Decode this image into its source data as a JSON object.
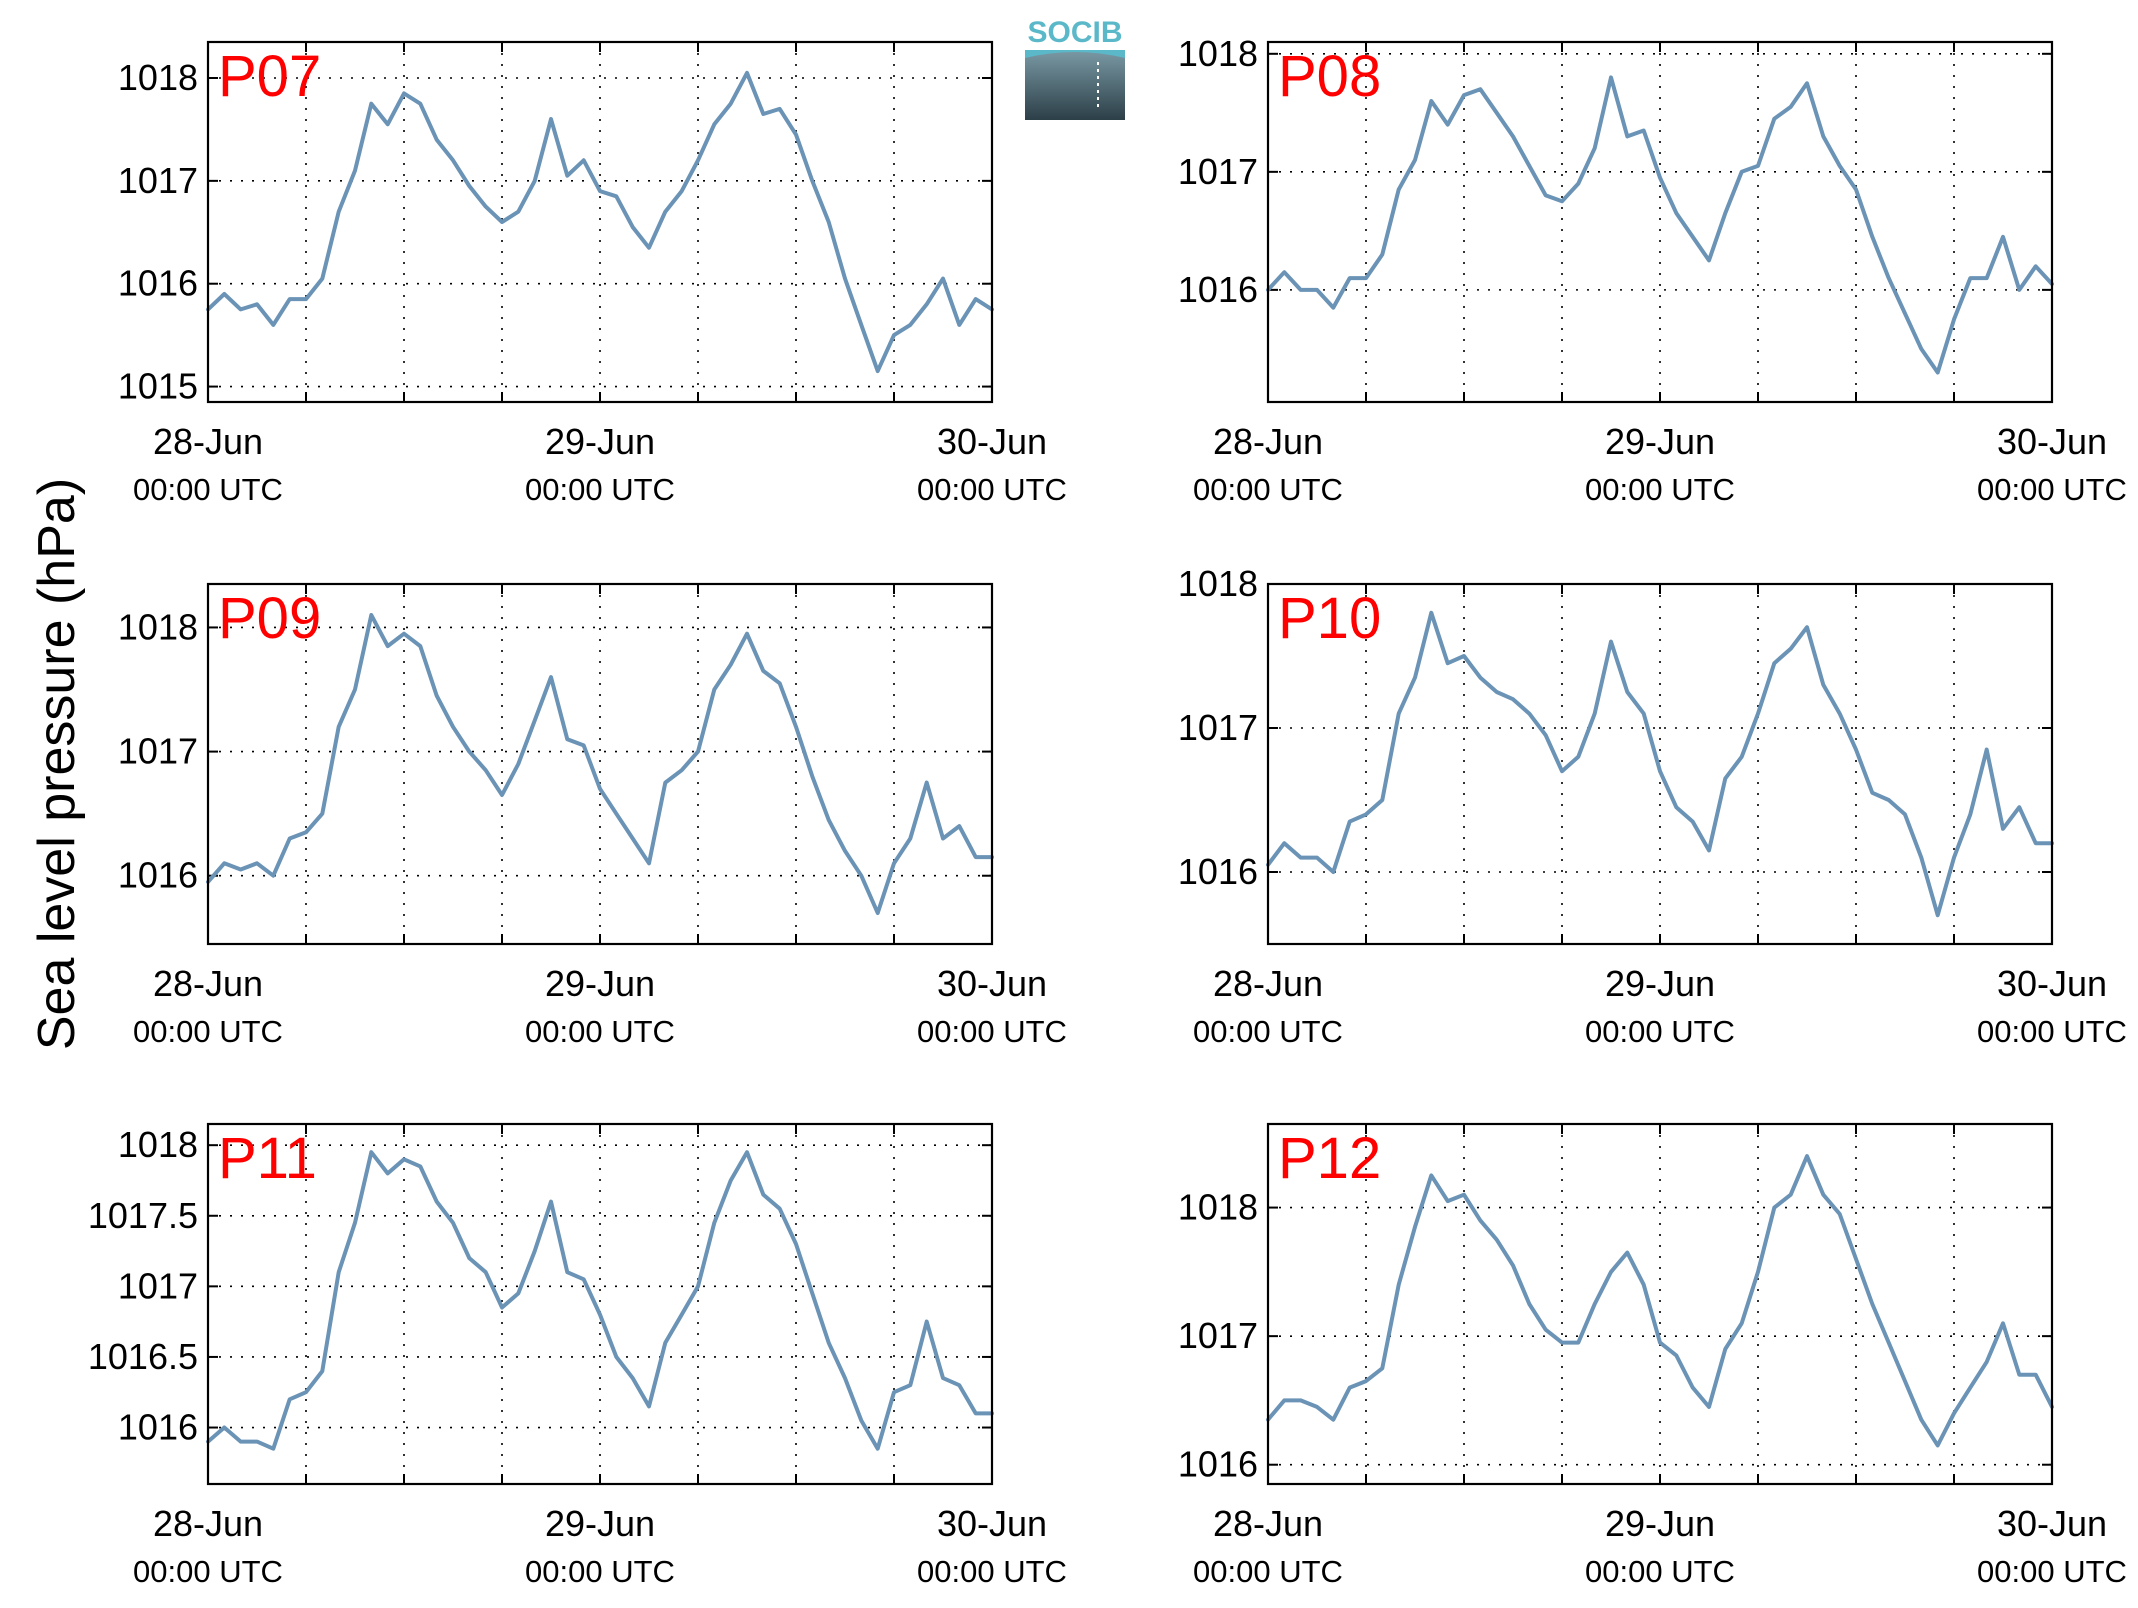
{
  "figure": {
    "ylabel": "Sea level pressure (hPa)",
    "logo": {
      "text": "SOCIB",
      "colors": {
        "text": "#5bb8c9",
        "top": "#7a9aa5",
        "bottom": "#2c3f48"
      }
    }
  },
  "colors": {
    "line": "#6a93b6",
    "label": "#ff0000",
    "grid": "#000000"
  },
  "chart_data": [
    {
      "type": "line",
      "title": "P07",
      "x_ticks": [
        {
          "date": "28-Jun",
          "time": "00:00 UTC",
          "x": 0
        },
        {
          "date": "29-Jun",
          "time": "00:00 UTC",
          "x": 24
        },
        {
          "date": "30-Jun",
          "time": "00:00 UTC",
          "x": 48
        }
      ],
      "xlim": [
        0,
        48
      ],
      "ylim": [
        1014.85,
        1018.35
      ],
      "y_ticks": [
        "1015",
        "1016",
        "1017",
        "1018"
      ],
      "grid": true,
      "x": [
        0,
        1,
        2,
        3,
        4,
        5,
        6,
        7,
        8,
        9,
        10,
        11,
        12,
        13,
        14,
        15,
        16,
        17,
        18,
        19,
        20,
        21,
        22,
        23,
        24,
        25,
        26,
        27,
        28,
        29,
        30,
        31,
        32,
        33,
        34,
        35,
        36,
        37,
        38,
        39,
        40,
        41,
        42,
        43,
        44,
        45,
        46,
        47,
        48
      ],
      "y": [
        1015.75,
        1015.9,
        1015.75,
        1015.8,
        1015.6,
        1015.85,
        1015.85,
        1016.05,
        1016.7,
        1017.1,
        1017.75,
        1017.55,
        1017.85,
        1017.75,
        1017.4,
        1017.2,
        1016.95,
        1016.75,
        1016.6,
        1016.7,
        1017.0,
        1017.6,
        1017.05,
        1017.2,
        1016.9,
        1016.85,
        1016.55,
        1016.35,
        1016.7,
        1016.9,
        1017.2,
        1017.55,
        1017.75,
        1018.05,
        1017.65,
        1017.7,
        1017.45,
        1017.0,
        1016.6,
        1016.05,
        1015.6,
        1015.15,
        1015.5,
        1015.6,
        1015.8,
        1016.05,
        1015.6,
        1015.85,
        1015.75
      ]
    },
    {
      "type": "line",
      "title": "P08",
      "x_ticks": [
        {
          "date": "28-Jun",
          "time": "00:00 UTC",
          "x": 0
        },
        {
          "date": "29-Jun",
          "time": "00:00 UTC",
          "x": 24
        },
        {
          "date": "30-Jun",
          "time": "00:00 UTC",
          "x": 48
        }
      ],
      "xlim": [
        0,
        48
      ],
      "ylim": [
        1015.05,
        1018.1
      ],
      "y_ticks": [
        "1016",
        "1017",
        "1018"
      ],
      "grid": true,
      "x": [
        0,
        1,
        2,
        3,
        4,
        5,
        6,
        7,
        8,
        9,
        10,
        11,
        12,
        13,
        14,
        15,
        16,
        17,
        18,
        19,
        20,
        21,
        22,
        23,
        24,
        25,
        26,
        27,
        28,
        29,
        30,
        31,
        32,
        33,
        34,
        35,
        36,
        37,
        38,
        39,
        40,
        41,
        42,
        43,
        44,
        45,
        46,
        47,
        48
      ],
      "y": [
        1016.0,
        1016.15,
        1016.0,
        1016.0,
        1015.85,
        1016.1,
        1016.1,
        1016.3,
        1016.85,
        1017.1,
        1017.6,
        1017.4,
        1017.65,
        1017.7,
        1017.5,
        1017.3,
        1017.05,
        1016.8,
        1016.75,
        1016.9,
        1017.2,
        1017.8,
        1017.3,
        1017.35,
        1016.95,
        1016.65,
        1016.45,
        1016.25,
        1016.65,
        1017.0,
        1017.05,
        1017.45,
        1017.55,
        1017.75,
        1017.3,
        1017.05,
        1016.85,
        1016.45,
        1016.1,
        1015.8,
        1015.5,
        1015.3,
        1015.75,
        1016.1,
        1016.1,
        1016.45,
        1016.0,
        1016.2,
        1016.05
      ]
    },
    {
      "type": "line",
      "title": "P09",
      "x_ticks": [
        {
          "date": "28-Jun",
          "time": "00:00 UTC",
          "x": 0
        },
        {
          "date": "29-Jun",
          "time": "00:00 UTC",
          "x": 24
        },
        {
          "date": "30-Jun",
          "time": "00:00 UTC",
          "x": 48
        }
      ],
      "xlim": [
        0,
        48
      ],
      "ylim": [
        1015.45,
        1018.35
      ],
      "y_ticks": [
        "1016",
        "1017",
        "1018"
      ],
      "grid": true,
      "x": [
        0,
        1,
        2,
        3,
        4,
        5,
        6,
        7,
        8,
        9,
        10,
        11,
        12,
        13,
        14,
        15,
        16,
        17,
        18,
        19,
        20,
        21,
        22,
        23,
        24,
        25,
        26,
        27,
        28,
        29,
        30,
        31,
        32,
        33,
        34,
        35,
        36,
        37,
        38,
        39,
        40,
        41,
        42,
        43,
        44,
        45,
        46,
        47,
        48
      ],
      "y": [
        1015.95,
        1016.1,
        1016.05,
        1016.1,
        1016.0,
        1016.3,
        1016.35,
        1016.5,
        1017.2,
        1017.5,
        1018.1,
        1017.85,
        1017.95,
        1017.85,
        1017.45,
        1017.2,
        1017.0,
        1016.85,
        1016.65,
        1016.9,
        1017.25,
        1017.6,
        1017.1,
        1017.05,
        1016.7,
        1016.5,
        1016.3,
        1016.1,
        1016.75,
        1016.85,
        1017.0,
        1017.5,
        1017.7,
        1017.95,
        1017.65,
        1017.55,
        1017.2,
        1016.8,
        1016.45,
        1016.2,
        1016.0,
        1015.7,
        1016.1,
        1016.3,
        1016.75,
        1016.3,
        1016.4,
        1016.15,
        1016.15
      ]
    },
    {
      "type": "line",
      "title": "P10",
      "x_ticks": [
        {
          "date": "28-Jun",
          "time": "00:00 UTC",
          "x": 0
        },
        {
          "date": "29-Jun",
          "time": "00:00 UTC",
          "x": 24
        },
        {
          "date": "30-Jun",
          "time": "00:00 UTC",
          "x": 48
        }
      ],
      "xlim": [
        0,
        48
      ],
      "ylim": [
        1015.5,
        1018.0
      ],
      "y_ticks": [
        "1016",
        "1017",
        "1018"
      ],
      "grid": true,
      "x": [
        0,
        1,
        2,
        3,
        4,
        5,
        6,
        7,
        8,
        9,
        10,
        11,
        12,
        13,
        14,
        15,
        16,
        17,
        18,
        19,
        20,
        21,
        22,
        23,
        24,
        25,
        26,
        27,
        28,
        29,
        30,
        31,
        32,
        33,
        34,
        35,
        36,
        37,
        38,
        39,
        40,
        41,
        42,
        43,
        44,
        45,
        46,
        47,
        48
      ],
      "y": [
        1016.05,
        1016.2,
        1016.1,
        1016.1,
        1016.0,
        1016.35,
        1016.4,
        1016.5,
        1017.1,
        1017.35,
        1017.8,
        1017.45,
        1017.5,
        1017.35,
        1017.25,
        1017.2,
        1017.1,
        1016.95,
        1016.7,
        1016.8,
        1017.1,
        1017.6,
        1017.25,
        1017.1,
        1016.7,
        1016.45,
        1016.35,
        1016.15,
        1016.65,
        1016.8,
        1017.1,
        1017.45,
        1017.55,
        1017.7,
        1017.3,
        1017.1,
        1016.85,
        1016.55,
        1016.5,
        1016.4,
        1016.1,
        1015.7,
        1016.1,
        1016.4,
        1016.85,
        1016.3,
        1016.45,
        1016.2,
        1016.2
      ]
    },
    {
      "type": "line",
      "title": "P11",
      "x_ticks": [
        {
          "date": "28-Jun",
          "time": "00:00 UTC",
          "x": 0
        },
        {
          "date": "29-Jun",
          "time": "00:00 UTC",
          "x": 24
        },
        {
          "date": "30-Jun",
          "time": "00:00 UTC",
          "x": 48
        }
      ],
      "xlim": [
        0,
        48
      ],
      "ylim": [
        1015.6,
        1018.15
      ],
      "y_ticks": [
        "1016",
        "1016.5",
        "1017",
        "1017.5",
        "1018"
      ],
      "grid": true,
      "x": [
        0,
        1,
        2,
        3,
        4,
        5,
        6,
        7,
        8,
        9,
        10,
        11,
        12,
        13,
        14,
        15,
        16,
        17,
        18,
        19,
        20,
        21,
        22,
        23,
        24,
        25,
        26,
        27,
        28,
        29,
        30,
        31,
        32,
        33,
        34,
        35,
        36,
        37,
        38,
        39,
        40,
        41,
        42,
        43,
        44,
        45,
        46,
        47,
        48
      ],
      "y": [
        1015.9,
        1016.0,
        1015.9,
        1015.9,
        1015.85,
        1016.2,
        1016.25,
        1016.4,
        1017.1,
        1017.45,
        1017.95,
        1017.8,
        1017.9,
        1017.85,
        1017.6,
        1017.45,
        1017.2,
        1017.1,
        1016.85,
        1016.95,
        1017.25,
        1017.6,
        1017.1,
        1017.05,
        1016.8,
        1016.5,
        1016.35,
        1016.15,
        1016.6,
        1016.8,
        1017.0,
        1017.45,
        1017.75,
        1017.95,
        1017.65,
        1017.55,
        1017.3,
        1016.95,
        1016.6,
        1016.35,
        1016.05,
        1015.85,
        1016.25,
        1016.3,
        1016.75,
        1016.35,
        1016.3,
        1016.1,
        1016.1
      ]
    },
    {
      "type": "line",
      "title": "P12",
      "x_ticks": [
        {
          "date": "28-Jun",
          "time": "00:00 UTC",
          "x": 0
        },
        {
          "date": "29-Jun",
          "time": "00:00 UTC",
          "x": 24
        },
        {
          "date": "30-Jun",
          "time": "00:00 UTC",
          "x": 48
        }
      ],
      "xlim": [
        0,
        48
      ],
      "ylim": [
        1015.85,
        1018.65
      ],
      "y_ticks": [
        "1016",
        "1017",
        "1018"
      ],
      "grid": true,
      "x": [
        0,
        1,
        2,
        3,
        4,
        5,
        6,
        7,
        8,
        9,
        10,
        11,
        12,
        13,
        14,
        15,
        16,
        17,
        18,
        19,
        20,
        21,
        22,
        23,
        24,
        25,
        26,
        27,
        28,
        29,
        30,
        31,
        32,
        33,
        34,
        35,
        36,
        37,
        38,
        39,
        40,
        41,
        42,
        43,
        44,
        45,
        46,
        47,
        48
      ],
      "y": [
        1016.35,
        1016.5,
        1016.5,
        1016.45,
        1016.35,
        1016.6,
        1016.65,
        1016.75,
        1017.4,
        1017.85,
        1018.25,
        1018.05,
        1018.1,
        1017.9,
        1017.75,
        1017.55,
        1017.25,
        1017.05,
        1016.95,
        1016.95,
        1017.25,
        1017.5,
        1017.65,
        1017.4,
        1016.95,
        1016.85,
        1016.6,
        1016.45,
        1016.9,
        1017.1,
        1017.5,
        1018.0,
        1018.1,
        1018.4,
        1018.1,
        1017.95,
        1017.6,
        1017.25,
        1016.95,
        1016.65,
        1016.35,
        1016.15,
        1016.4,
        1016.6,
        1016.8,
        1017.1,
        1016.7,
        1016.7,
        1016.45
      ]
    }
  ]
}
